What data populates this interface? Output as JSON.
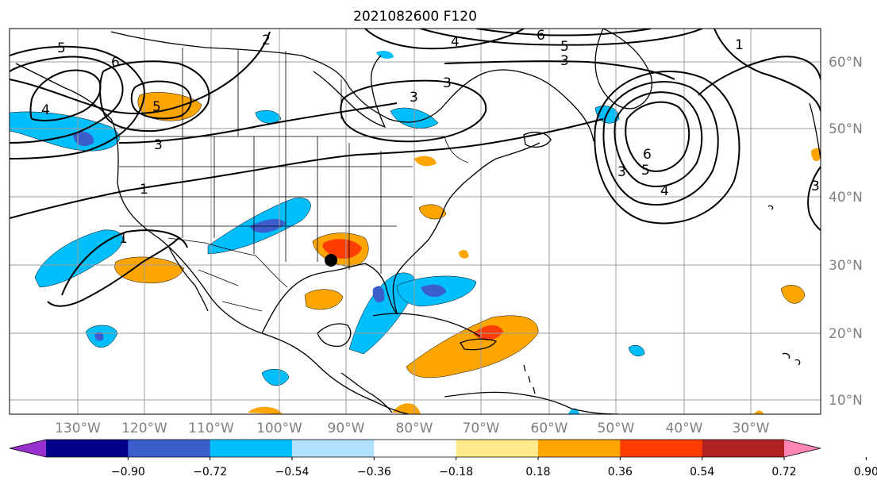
{
  "title": "2021082600 F120",
  "lon_ticks": [
    "130°W",
    "120°W",
    "110°W",
    "100°W",
    "90°W",
    "80°W",
    "70°W",
    "60°W",
    "50°W",
    "40°W",
    "30°W"
  ],
  "lat_ticks": [
    "60°N",
    "50°N",
    "40°N",
    "30°N",
    "20°N",
    "10°N"
  ],
  "colorbar": {
    "ticks": [
      "−0.90",
      "−0.72",
      "−0.54",
      "−0.36",
      "−0.18",
      "0.18",
      "0.36",
      "0.54",
      "0.72",
      "0.90"
    ],
    "colors": [
      "#9b30d0",
      "#00008b",
      "#3a5fcd",
      "#00bfff",
      "#b0e2ff",
      "#ffffff",
      "#ffe98a",
      "#ffa500",
      "#ff3c00",
      "#b22222",
      "#ff85b4"
    ]
  },
  "contour_labels": [
    "5",
    "6",
    "2",
    "4",
    "6",
    "5",
    "3",
    "3",
    "1",
    "5",
    "4",
    "3",
    "3",
    "1",
    "1",
    "6",
    "5",
    "4",
    "3",
    "3"
  ],
  "marker": "storm-location-dot"
}
